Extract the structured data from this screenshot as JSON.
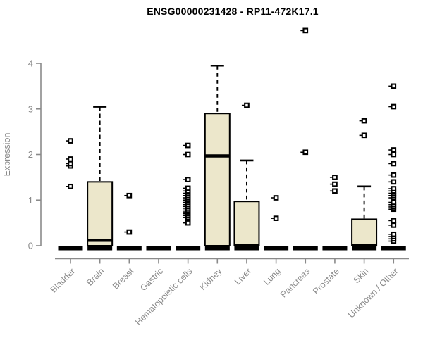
{
  "title": "ENSG00000231428 - RP11-472K17.1",
  "chart_data": {
    "type": "boxplot",
    "title": "ENSG00000231428 - RP11-472K17.1",
    "xlabel": "",
    "ylabel": "Expression",
    "ylim": [
      0,
      4
    ],
    "yticks": [
      "0",
      "1",
      "2",
      "3",
      "4"
    ],
    "grid": false,
    "legend": "none",
    "categories": [
      "Bladder",
      "Brain",
      "Breast",
      "Gastric",
      "Hematopoietic cells",
      "Kidney",
      "Liver",
      "Lung",
      "Pancreas",
      "Prostate",
      "Skin",
      "Unknown / Other"
    ],
    "series": [
      {
        "category": "Bladder",
        "q1": 0,
        "median": 0,
        "q3": 0,
        "whisker_low": 0,
        "whisker_high": 0,
        "outliers": [
          1.3,
          1.75,
          1.8,
          1.9,
          2.3
        ]
      },
      {
        "category": "Brain",
        "q1": 0,
        "median": 0.12,
        "q3": 1.4,
        "whisker_low": 0,
        "whisker_high": 3.05,
        "outliers": []
      },
      {
        "category": "Breast",
        "q1": 0,
        "median": 0,
        "q3": 0,
        "whisker_low": 0,
        "whisker_high": 0,
        "outliers": [
          0.3,
          1.1
        ]
      },
      {
        "category": "Gastric",
        "q1": 0,
        "median": 0,
        "q3": 0,
        "whisker_low": 0,
        "whisker_high": 0,
        "outliers": []
      },
      {
        "category": "Hematopoietic cells",
        "q1": 0,
        "median": 0,
        "q3": 0,
        "whisker_low": 0,
        "whisker_high": 0,
        "outliers": [
          0.5,
          0.62,
          0.66,
          0.7,
          0.74,
          0.78,
          0.82,
          0.86,
          0.9,
          0.95,
          1.0,
          1.05,
          1.1,
          1.15,
          1.2,
          1.26,
          1.45,
          2.0,
          2.2
        ]
      },
      {
        "category": "Kidney",
        "q1": 0,
        "median": 1.97,
        "q3": 2.9,
        "whisker_low": 0,
        "whisker_high": 3.95,
        "outliers": []
      },
      {
        "category": "Liver",
        "q1": 0,
        "median": 0,
        "q3": 0.97,
        "whisker_low": 0,
        "whisker_high": 1.87,
        "outliers": [
          3.08
        ]
      },
      {
        "category": "Lung",
        "q1": 0,
        "median": 0,
        "q3": 0,
        "whisker_low": 0,
        "whisker_high": 0,
        "outliers": [
          0.6,
          1.05
        ]
      },
      {
        "category": "Pancreas",
        "q1": 0,
        "median": 0,
        "q3": 0,
        "whisker_low": 0,
        "whisker_high": 0,
        "outliers": [
          2.05,
          4.72
        ]
      },
      {
        "category": "Prostate",
        "q1": 0,
        "median": 0,
        "q3": 0,
        "whisker_low": 0,
        "whisker_high": 0,
        "outliers": [
          1.2,
          1.35,
          1.5
        ]
      },
      {
        "category": "Skin",
        "q1": 0,
        "median": 0,
        "q3": 0.58,
        "whisker_low": 0,
        "whisker_high": 1.3,
        "outliers": [
          2.42,
          2.74
        ]
      },
      {
        "category": "Unknown / Other",
        "q1": 0,
        "median": 0,
        "q3": 0,
        "whisker_low": 0,
        "whisker_high": 0,
        "outliers": [
          0.1,
          0.15,
          0.2,
          0.25,
          0.45,
          0.55,
          0.8,
          0.85,
          0.9,
          0.95,
          1.05,
          1.1,
          1.15,
          1.2,
          1.25,
          1.4,
          1.55,
          1.8,
          2.0,
          2.1,
          3.05,
          3.5
        ]
      }
    ],
    "colors": {
      "box_fill": "#ECE7CB",
      "box_border": "#000000",
      "median": "#000000",
      "whisker": "#000000",
      "outlier": "#000000",
      "axis": "#8A8A8A",
      "tick_label": "#8A8A8A",
      "title": "#000000",
      "background": "#FFFFFF"
    }
  }
}
